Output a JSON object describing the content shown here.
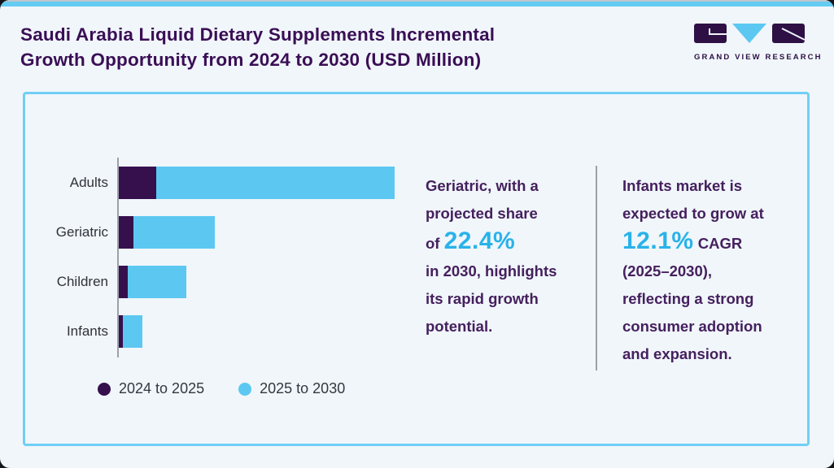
{
  "header": {
    "title": "Saudi Arabia Liquid Dietary Supplements Incremental\nGrowth Opportunity from 2024 to 2030 (USD Million)",
    "logo_text": "GRAND VIEW RESEARCH"
  },
  "colors": {
    "background": "#F0F6FA",
    "top_strip_blue": "#64CBF3",
    "panel_border_blue": "#70CFF6",
    "series_dark_purple": "#36104D",
    "series_light_blue": "#5CC8F2",
    "title_purple": "#3A0E55",
    "body_text_purple": "#45205E",
    "highlight_blue": "#29B2EA",
    "axis_gray": "#9BA1A8",
    "label_gray": "#30323A"
  },
  "chart_data": {
    "type": "bar",
    "orientation": "horizontal",
    "stacked": true,
    "title": "Saudi Arabia Liquid Dietary Supplements Incremental Growth Opportunity from 2024 to 2030 (USD Million)",
    "categories": [
      "Adults",
      "Geriatric",
      "Children",
      "Infants"
    ],
    "series": [
      {
        "name": "2024 to 2025",
        "color": "#36104D",
        "values": [
          46,
          18,
          11,
          5
        ]
      },
      {
        "name": "2025 to 2030",
        "color": "#5CC8F2",
        "values": [
          293,
          100,
          72,
          24
        ]
      }
    ],
    "values_unit": "relative bar length (axis unlabeled; values in USD Million not printed on chart)",
    "xlabel": "",
    "ylabel": "",
    "grid": false,
    "legend_position": "bottom"
  },
  "insights": [
    {
      "name": "geriatric-share",
      "segments": [
        {
          "text": "Geriatric, with a\nprojected share\nof ",
          "style": "plain"
        },
        {
          "text": "22.4%",
          "style": "highlight"
        },
        {
          "text": "\nin 2030, highlights\nits rapid growth\npotential.",
          "style": "plain"
        }
      ]
    },
    {
      "name": "infants-cagr",
      "segments": [
        {
          "text": "Infants market is\nexpected to grow at\n",
          "style": "plain"
        },
        {
          "text": "12.1%",
          "style": "highlight"
        },
        {
          "text": " CAGR\n(2025–2030),\nreflecting a strong\nconsumer adoption\nand expansion.",
          "style": "plain"
        }
      ]
    }
  ]
}
